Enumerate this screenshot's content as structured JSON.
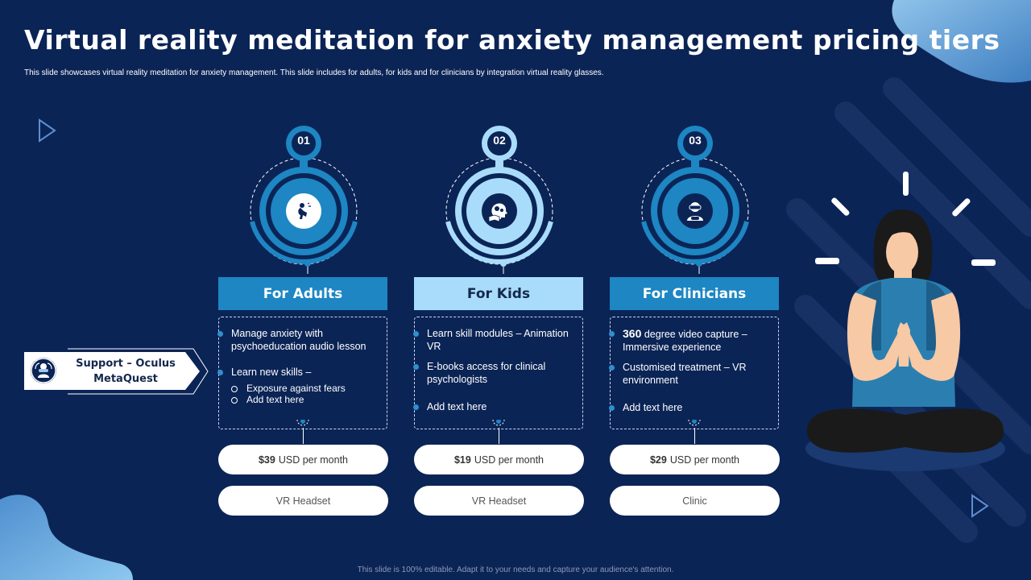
{
  "slide": {
    "title": "Virtual reality meditation for anxiety management pricing tiers",
    "subtitle": "This slide showcases virtual reality meditation  for anxiety management. This slide includes for adults, for kids and for clinicians by integration virtual reality glasses.",
    "footer": "This slide is 100% editable. Adapt it to your needs and capture your audience's attention."
  },
  "support": {
    "label_line1": "Support – Oculus",
    "label_line2": "MetaQuest"
  },
  "tiers": [
    {
      "number": "01",
      "icon": "anxious-person-icon",
      "header": "For Adults",
      "header_bg": "#1d86c3",
      "header_color": "#ffffff",
      "features": [
        "Manage anxiety with psychoeducation audio lesson",
        "Learn new skills –"
      ],
      "sub_features": [
        "Exposure against fears",
        "Add text here"
      ],
      "price": "$39",
      "price_unit": "USD per month",
      "device": "VR Headset"
    },
    {
      "number": "02",
      "icon": "brain-gears-book-icon",
      "header": "For Kids",
      "header_bg": "#a9dcfa",
      "header_color": "#15284d",
      "features": [
        "Learn skill modules – Animation VR",
        "E-books access for clinical psychologists",
        "Add text here"
      ],
      "price": "$19",
      "price_unit": "USD per month",
      "device": "VR Headset"
    },
    {
      "number": "03",
      "icon": "vr-headset-person-icon",
      "header": "For Clinicians",
      "header_bg": "#1d86c3",
      "header_color": "#ffffff",
      "features_bold_prefix": "360",
      "features": [
        " degree video capture – Immersive experience",
        "Customised treatment – VR environment",
        "Add text here"
      ],
      "price": "$29",
      "price_unit": "USD per month",
      "device": "Clinic"
    }
  ],
  "colors": {
    "background": "#0b2456",
    "accent_blue": "#1d86c3",
    "accent_light": "#a9dcfa"
  }
}
